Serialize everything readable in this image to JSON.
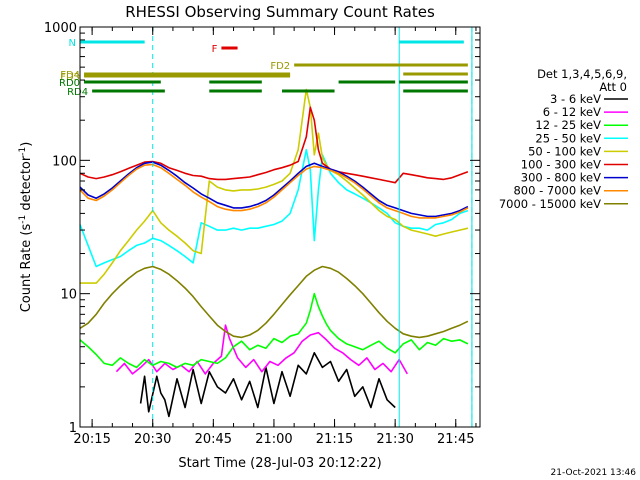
{
  "chart_data": {
    "type": "line",
    "title": "RHESSI Observing Summary Count Rates",
    "xlabel": "Start Time (28-Jul-03 20:12:22)",
    "ylabel_parts": [
      "Count Rate (s",
      "-1",
      " detector",
      "-1",
      ")"
    ],
    "y_log": true,
    "ylim": [
      1,
      1000
    ],
    "xlim_minutes": [
      "20:12",
      "21:51"
    ],
    "x_ticks": [
      "20:15",
      "20:30",
      "20:45",
      "21:00",
      "21:15",
      "21:30",
      "21:45"
    ],
    "y_ticks": [
      "1",
      "10",
      "100",
      "1000"
    ],
    "footer": "21-Oct-2021 13:46",
    "legend_header": [
      "Det 1,3,4,5,6,9,",
      "Att 0"
    ],
    "vertical_lines": [
      "20:12",
      "21:31",
      "21:49"
    ],
    "dashed_lines": [
      "20:30",
      "21:49"
    ],
    "status_bars": [
      {
        "label": "N",
        "color": "#00e5e5",
        "segments": [
          [
            "20:12",
            "20:28"
          ],
          [
            "21:31",
            "21:47"
          ]
        ]
      },
      {
        "label": "F",
        "color": "#e00000",
        "segments": [
          [
            "20:47",
            "20:51"
          ]
        ]
      },
      {
        "label": "FD2",
        "color": "#999900",
        "segments": [
          [
            "21:05",
            "21:48"
          ]
        ]
      },
      {
        "label": "FD3",
        "color": "#999900",
        "segments": [
          [
            "20:13",
            "21:04"
          ]
        ]
      },
      {
        "label": "FD4",
        "color": "#999900",
        "segments": [
          [
            "20:13",
            "21:04"
          ],
          [
            "21:32",
            "21:48"
          ]
        ]
      },
      {
        "label": "RD0",
        "color": "#007700",
        "segments": [
          [
            "20:13",
            "20:32"
          ],
          [
            "20:44",
            "20:57"
          ],
          [
            "21:16",
            "21:30"
          ],
          [
            "21:31",
            "21:48"
          ]
        ]
      },
      {
        "label": "RD4",
        "color": "#007700",
        "segments": [
          [
            "20:15",
            "20:33"
          ],
          [
            "20:44",
            "20:57"
          ],
          [
            "21:02",
            "21:15"
          ],
          [
            "21:32",
            "21:48"
          ]
        ]
      }
    ],
    "series": [
      {
        "name": "3 - 6 keV",
        "color": "#000000",
        "x": [
          "20:27",
          "20:28",
          "20:29",
          "20:31",
          "20:32",
          "20:33",
          "20:34",
          "20:36",
          "20:38",
          "20:40",
          "20:42",
          "20:44",
          "20:46",
          "20:48",
          "20:50",
          "20:52",
          "20:54",
          "20:56",
          "20:58",
          "21:00",
          "21:02",
          "21:04",
          "21:06",
          "21:08",
          "21:10",
          "21:12",
          "21:14",
          "21:16",
          "21:18",
          "21:20",
          "21:22",
          "21:24",
          "21:26",
          "21:28",
          "21:30"
        ],
        "y": [
          1.5,
          2.4,
          1.3,
          2.4,
          1.8,
          1.6,
          1.2,
          2.3,
          1.4,
          2.7,
          1.5,
          2.6,
          2.0,
          1.8,
          2.3,
          1.6,
          2.2,
          1.4,
          2.8,
          1.5,
          2.6,
          1.7,
          2.9,
          2.5,
          3.6,
          2.8,
          3.1,
          2.2,
          2.7,
          1.7,
          2.0,
          1.4,
          2.3,
          1.6,
          1.4
        ]
      },
      {
        "name": "6 - 12 keV",
        "color": "#ff00ff",
        "x": [
          "20:21",
          "20:23",
          "20:25",
          "20:27",
          "20:29",
          "20:31",
          "20:33",
          "20:35",
          "20:37",
          "20:39",
          "20:41",
          "20:43",
          "20:45",
          "20:47",
          "20:48",
          "20:49",
          "20:51",
          "20:53",
          "20:55",
          "20:57",
          "20:59",
          "21:01",
          "21:03",
          "21:05",
          "21:07",
          "21:09",
          "21:11",
          "21:13",
          "21:15",
          "21:17",
          "21:19",
          "21:21",
          "21:23",
          "21:25",
          "21:27",
          "21:29",
          "21:31",
          "21:33"
        ],
        "y": [
          2.6,
          3.0,
          2.5,
          2.8,
          3.2,
          2.6,
          3.0,
          2.7,
          2.9,
          2.6,
          3.1,
          2.5,
          3.0,
          3.4,
          5.8,
          4.6,
          3.3,
          2.8,
          3.2,
          2.6,
          3.1,
          2.9,
          3.3,
          3.6,
          4.4,
          4.9,
          5.1,
          4.5,
          3.9,
          3.6,
          3.2,
          2.9,
          3.3,
          2.7,
          3.0,
          2.6,
          3.2,
          2.5
        ]
      },
      {
        "name": "12 - 25 keV",
        "color": "#00ff00",
        "x": [
          "20:12",
          "20:14",
          "20:16",
          "20:18",
          "20:20",
          "20:22",
          "20:24",
          "20:26",
          "20:28",
          "20:30",
          "20:32",
          "20:34",
          "20:36",
          "20:38",
          "20:40",
          "20:42",
          "20:44",
          "20:46",
          "20:48",
          "20:50",
          "20:52",
          "20:54",
          "20:56",
          "20:58",
          "21:00",
          "21:02",
          "21:04",
          "21:06",
          "21:08",
          "21:09",
          "21:10",
          "21:11",
          "21:12",
          "21:13",
          "21:14",
          "21:16",
          "21:18",
          "21:20",
          "21:22",
          "21:24",
          "21:26",
          "21:28",
          "21:30",
          "21:32",
          "21:34",
          "21:36",
          "21:38",
          "21:40",
          "21:42",
          "21:44",
          "21:46",
          "21:48"
        ],
        "y": [
          4.5,
          4.0,
          3.5,
          3.0,
          2.9,
          3.3,
          3.0,
          2.8,
          3.2,
          2.9,
          3.1,
          3.0,
          2.8,
          3.0,
          2.9,
          3.2,
          3.1,
          3.0,
          3.3,
          4.0,
          4.4,
          3.8,
          4.1,
          3.9,
          4.6,
          4.3,
          4.8,
          5.0,
          6.0,
          7.5,
          10.0,
          8.0,
          6.8,
          5.9,
          5.3,
          4.6,
          4.2,
          4.0,
          3.8,
          4.1,
          4.4,
          3.9,
          3.6,
          4.2,
          4.5,
          3.8,
          4.3,
          4.1,
          4.6,
          4.4,
          4.5,
          4.2
        ]
      },
      {
        "name": "25 - 50 keV",
        "color": "#00ffff",
        "x": [
          "20:12",
          "20:16",
          "20:18",
          "20:20",
          "20:22",
          "20:24",
          "20:26",
          "20:28",
          "20:30",
          "20:32",
          "20:34",
          "20:36",
          "20:38",
          "20:40",
          "20:42",
          "20:44",
          "20:46",
          "20:48",
          "20:50",
          "20:52",
          "20:54",
          "20:56",
          "20:58",
          "21:00",
          "21:02",
          "21:04",
          "21:06",
          "21:08",
          "21:09",
          "21:10",
          "21:11",
          "21:12",
          "21:14",
          "21:16",
          "21:18",
          "21:20",
          "21:22",
          "21:24",
          "21:26",
          "21:28",
          "21:30",
          "21:32",
          "21:34",
          "21:36",
          "21:38",
          "21:40",
          "21:42",
          "21:44",
          "21:46",
          "21:48"
        ],
        "y": [
          33,
          16,
          17,
          18,
          19,
          21,
          23,
          24,
          26,
          25,
          23,
          21,
          19,
          17,
          34,
          32,
          30,
          30,
          31,
          30,
          31,
          31,
          32,
          33,
          35,
          40,
          60,
          120,
          85,
          25,
          60,
          110,
          80,
          68,
          60,
          56,
          52,
          48,
          44,
          40,
          34,
          32,
          31,
          31,
          30,
          33,
          34,
          36,
          40,
          42
        ]
      },
      {
        "name": "50 - 100 keV",
        "color": "#cccc00",
        "x": [
          "20:12",
          "20:14",
          "20:16",
          "20:18",
          "20:20",
          "20:22",
          "20:24",
          "20:26",
          "20:28",
          "20:30",
          "20:32",
          "20:34",
          "20:36",
          "20:38",
          "20:40",
          "20:42",
          "20:44",
          "20:46",
          "20:48",
          "20:50",
          "20:52",
          "20:54",
          "20:56",
          "20:58",
          "21:00",
          "21:02",
          "21:04",
          "21:06",
          "21:08",
          "21:09",
          "21:10",
          "21:11",
          "21:12",
          "21:13",
          "21:14",
          "21:16",
          "21:18",
          "21:20",
          "21:22",
          "21:24",
          "21:26",
          "21:28",
          "21:30",
          "21:32",
          "21:34",
          "21:36",
          "21:38",
          "21:40",
          "21:42",
          "21:44",
          "21:46",
          "21:48"
        ],
        "y": [
          12,
          12,
          12,
          14,
          17,
          21,
          25,
          30,
          35,
          42,
          34,
          30,
          27,
          24,
          21,
          20,
          70,
          63,
          60,
          59,
          60,
          60,
          61,
          63,
          66,
          70,
          80,
          120,
          340,
          250,
          110,
          160,
          105,
          92,
          84,
          78,
          70,
          62,
          55,
          48,
          42,
          38,
          36,
          32,
          30,
          29,
          28,
          27,
          28,
          29,
          30,
          31
        ]
      },
      {
        "name": "100 - 300 keV",
        "color": "#e00000",
        "x": [
          "20:12",
          "20:14",
          "20:16",
          "20:18",
          "20:20",
          "20:22",
          "20:24",
          "20:26",
          "20:28",
          "20:30",
          "20:32",
          "20:34",
          "20:36",
          "20:38",
          "20:40",
          "20:42",
          "20:44",
          "20:46",
          "20:48",
          "20:50",
          "20:52",
          "20:54",
          "20:56",
          "20:58",
          "21:00",
          "21:02",
          "21:04",
          "21:06",
          "21:08",
          "21:09",
          "21:10",
          "21:11",
          "21:12",
          "21:14",
          "21:16",
          "21:18",
          "21:20",
          "21:22",
          "21:24",
          "21:26",
          "21:28",
          "21:30",
          "21:32",
          "21:34",
          "21:36",
          "21:38",
          "21:40",
          "21:42",
          "21:44",
          "21:46",
          "21:48"
        ],
        "y": [
          80,
          75,
          73,
          75,
          78,
          82,
          87,
          92,
          97,
          98,
          95,
          88,
          84,
          80,
          77,
          76,
          73,
          72,
          72,
          73,
          74,
          75,
          78,
          81,
          85,
          88,
          92,
          98,
          150,
          250,
          200,
          120,
          95,
          86,
          82,
          80,
          78,
          76,
          74,
          72,
          70,
          68,
          80,
          78,
          76,
          74,
          73,
          72,
          74,
          78,
          82
        ]
      },
      {
        "name": "300 - 800 keV",
        "color": "#0000cc",
        "x": [
          "20:12",
          "20:14",
          "20:16",
          "20:18",
          "20:20",
          "20:22",
          "20:24",
          "20:26",
          "20:28",
          "20:30",
          "20:32",
          "20:34",
          "20:36",
          "20:38",
          "20:40",
          "20:42",
          "20:44",
          "20:46",
          "20:48",
          "20:50",
          "20:52",
          "20:54",
          "20:56",
          "20:58",
          "21:00",
          "21:02",
          "21:04",
          "21:06",
          "21:08",
          "21:10",
          "21:12",
          "21:14",
          "21:16",
          "21:18",
          "21:20",
          "21:22",
          "21:24",
          "21:26",
          "21:28",
          "21:30",
          "21:32",
          "21:34",
          "21:36",
          "21:38",
          "21:40",
          "21:42",
          "21:44",
          "21:46",
          "21:48"
        ],
        "y": [
          63,
          55,
          52,
          56,
          62,
          70,
          79,
          88,
          95,
          97,
          92,
          84,
          76,
          68,
          62,
          56,
          52,
          48,
          46,
          44,
          44,
          45,
          47,
          50,
          55,
          62,
          70,
          80,
          90,
          95,
          90,
          86,
          82,
          76,
          70,
          63,
          56,
          50,
          46,
          44,
          42,
          40,
          39,
          38,
          38,
          39,
          40,
          42,
          45
        ]
      },
      {
        "name": "800 - 7000 keV",
        "color": "#ff8800",
        "x": [
          "20:12",
          "20:14",
          "20:16",
          "20:18",
          "20:20",
          "20:22",
          "20:24",
          "20:26",
          "20:28",
          "20:30",
          "20:32",
          "20:34",
          "20:36",
          "20:38",
          "20:40",
          "20:42",
          "20:44",
          "20:46",
          "20:48",
          "20:50",
          "20:52",
          "20:54",
          "20:56",
          "20:58",
          "21:00",
          "21:02",
          "21:04",
          "21:06",
          "21:08",
          "21:10",
          "21:12",
          "21:14",
          "21:16",
          "21:18",
          "21:20",
          "21:22",
          "21:24",
          "21:26",
          "21:28",
          "21:30",
          "21:32",
          "21:34",
          "21:36",
          "21:38",
          "21:40",
          "21:42",
          "21:44",
          "21:46",
          "21:48"
        ],
        "y": [
          60,
          52,
          50,
          54,
          60,
          68,
          77,
          86,
          92,
          93,
          88,
          80,
          72,
          65,
          58,
          53,
          49,
          45,
          43,
          42,
          42,
          43,
          45,
          48,
          53,
          60,
          68,
          77,
          86,
          90,
          88,
          84,
          80,
          74,
          68,
          61,
          54,
          48,
          44,
          42,
          40,
          38,
          37,
          37,
          37,
          38,
          39,
          41,
          44
        ]
      },
      {
        "name": "7000 - 15000 keV",
        "color": "#808000",
        "x": [
          "20:12",
          "20:14",
          "20:16",
          "20:18",
          "20:20",
          "20:22",
          "20:24",
          "20:26",
          "20:28",
          "20:30",
          "20:32",
          "20:34",
          "20:36",
          "20:38",
          "20:40",
          "20:42",
          "20:44",
          "20:46",
          "20:48",
          "20:50",
          "20:52",
          "20:54",
          "20:56",
          "20:58",
          "21:00",
          "21:02",
          "21:04",
          "21:06",
          "21:08",
          "21:10",
          "21:12",
          "21:14",
          "21:16",
          "21:18",
          "21:20",
          "21:22",
          "21:24",
          "21:26",
          "21:28",
          "21:30",
          "21:32",
          "21:34",
          "21:36",
          "21:38",
          "21:40",
          "21:42",
          "21:44",
          "21:46",
          "21:48"
        ],
        "y": [
          5.5,
          6.0,
          7.0,
          8.5,
          10.0,
          11.5,
          13.0,
          14.5,
          15.5,
          16.0,
          15.2,
          14.0,
          12.5,
          11.0,
          9.5,
          8.0,
          6.8,
          5.8,
          5.2,
          4.8,
          4.7,
          4.9,
          5.3,
          6.0,
          7.0,
          8.3,
          9.8,
          11.5,
          13.5,
          15.0,
          16.0,
          15.5,
          14.5,
          13.0,
          11.5,
          10.0,
          8.5,
          7.2,
          6.2,
          5.5,
          5.0,
          4.8,
          4.7,
          4.8,
          5.0,
          5.2,
          5.5,
          5.8,
          6.2
        ]
      }
    ]
  }
}
